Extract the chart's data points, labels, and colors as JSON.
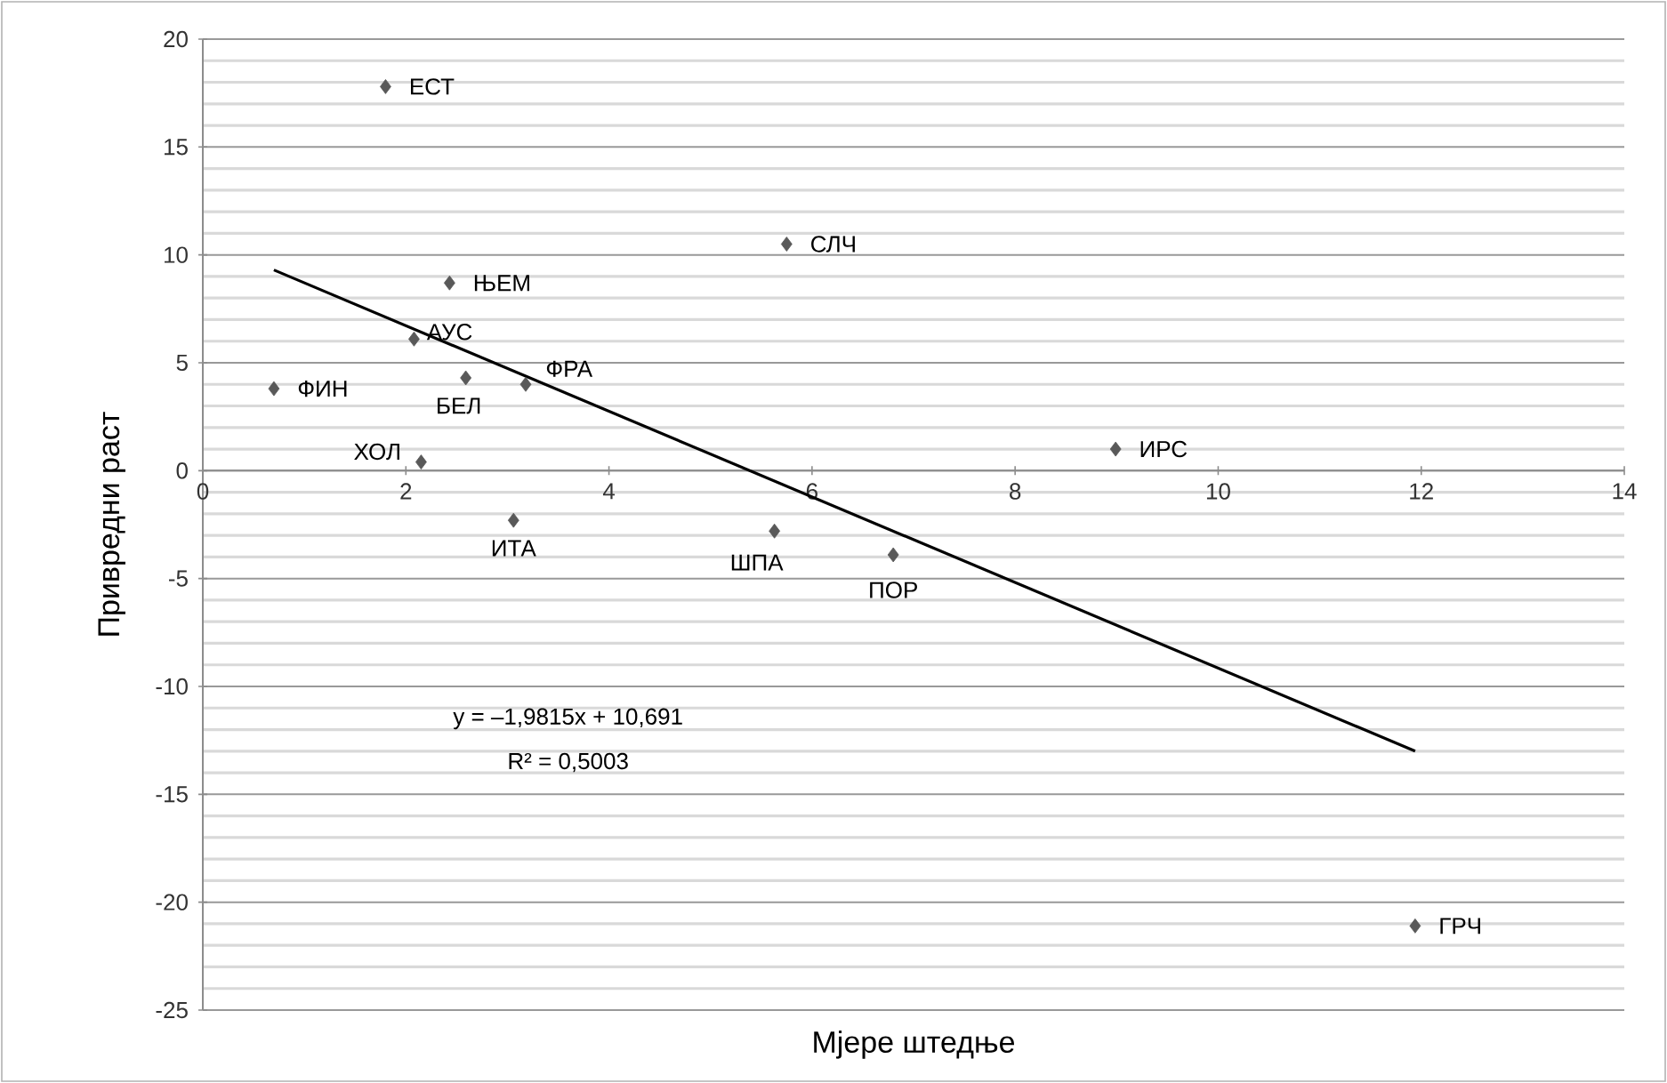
{
  "chart_data": {
    "type": "scatter",
    "xlabel": "Мјере штедње",
    "ylabel": "Привредни раст",
    "xlim": [
      0,
      14
    ],
    "xticks": [
      0,
      2,
      4,
      6,
      8,
      10,
      12,
      14
    ],
    "ylim": [
      -25,
      20
    ],
    "yticks": [
      -25,
      -20,
      -15,
      -10,
      -5,
      0,
      5,
      10,
      15,
      20
    ],
    "grid": "y",
    "marker": "diamond",
    "series": [
      {
        "color": "#595959",
        "x": [
          1.8,
          5.75,
          2.43,
          2.08,
          2.59,
          3.18,
          0.7,
          2.15,
          3.06,
          5.63,
          6.8,
          8.99,
          11.94
        ],
        "values": [
          17.8,
          10.5,
          8.7,
          6.1,
          4.3,
          4.0,
          3.8,
          0.4,
          -2.3,
          -2.8,
          -3.9,
          1.0,
          -21.1
        ]
      },
      {
        "type": "line",
        "color": "#000000",
        "marker": "none",
        "x": [
          0.7,
          11.94
        ],
        "values": [
          9.3,
          -13.0
        ]
      }
    ],
    "annotations": [
      {
        "text": "ЕСТ",
        "x": 1.8,
        "y": 17.8
      },
      {
        "text": "СЛЧ",
        "x": 5.75,
        "y": 10.5
      },
      {
        "text": "ЊЕМ",
        "x": 2.43,
        "y": 8.7
      },
      {
        "text": "АУС",
        "x": 2.08,
        "y": 6.1
      },
      {
        "text": "БЕЛ",
        "x": 2.59,
        "y": 4.3
      },
      {
        "text": "ФРА",
        "x": 3.18,
        "y": 4.0
      },
      {
        "text": "ФИН",
        "x": 0.7,
        "y": 3.8
      },
      {
        "text": "ХОЛ",
        "x": 2.15,
        "y": 0.4
      },
      {
        "text": "ИТА",
        "x": 3.06,
        "y": -2.3
      },
      {
        "text": "ШПА",
        "x": 5.63,
        "y": -2.8
      },
      {
        "text": "ПОР",
        "x": 6.8,
        "y": -3.9
      },
      {
        "text": "ИРС",
        "x": 8.99,
        "y": 1.0
      },
      {
        "text": "ГРЧ",
        "x": 11.94,
        "y": -21.1
      },
      "y = –1,9815x + 10,691",
      "R² = 0,5003"
    ]
  }
}
